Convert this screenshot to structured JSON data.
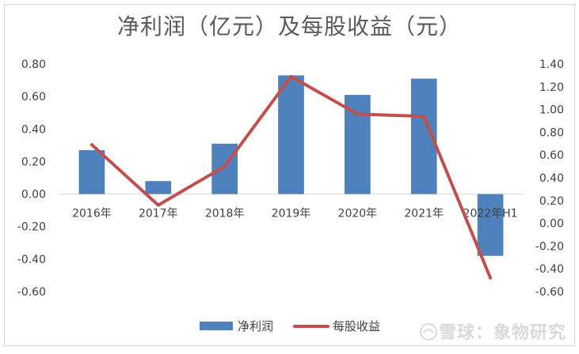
{
  "chart_data": {
    "type": "bar",
    "title": "净利润（亿元）及每股收益（元）",
    "categories": [
      "2016年",
      "2017年",
      "2018年",
      "2019年",
      "2020年",
      "2021年",
      "2022年H1"
    ],
    "series": [
      {
        "name": "净利润",
        "type": "bar",
        "axis": "left",
        "color": "#4f81bd",
        "values": [
          0.27,
          0.08,
          0.31,
          0.73,
          0.61,
          0.71,
          -0.38
        ]
      },
      {
        "name": "每股收益",
        "type": "line",
        "axis": "right",
        "color": "#c0504d",
        "values": [
          0.69,
          0.16,
          0.5,
          1.29,
          0.96,
          0.94,
          -0.48
        ]
      }
    ],
    "y_left": {
      "ylim": [
        -0.6,
        0.8
      ],
      "ticks": [
        "0.80",
        "0.60",
        "0.40",
        "0.20",
        "0.00",
        "-0.20",
        "-0.40",
        "-0.60"
      ]
    },
    "y_right": {
      "ylim": [
        -0.6,
        1.4
      ],
      "ticks": [
        "1.40",
        "1.20",
        "1.00",
        "0.80",
        "0.60",
        "0.40",
        "0.20",
        "0.00",
        "-0.20",
        "-0.40",
        "-0.60"
      ]
    },
    "grid": false,
    "legend": "bottom"
  },
  "watermark": "雪球：象物研究"
}
